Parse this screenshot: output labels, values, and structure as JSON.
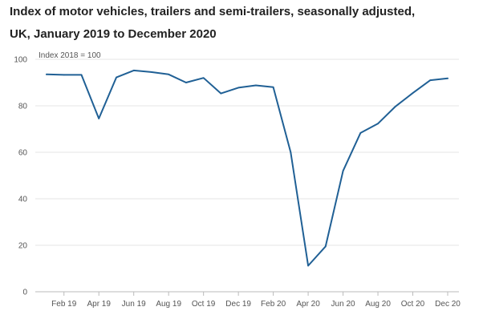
{
  "chart_data": {
    "type": "line",
    "title_lines": [
      "Index of motor vehicles, trailers and semi-trailers, seasonally adjusted,",
      "UK, January 2019 to December 2020"
    ],
    "unit_label": "Index 2018 = 100",
    "xlabel": "",
    "ylabel": "",
    "ylim": [
      0,
      100
    ],
    "y_ticks": [
      0,
      20,
      40,
      60,
      80,
      100
    ],
    "x_tick_labels": [
      {
        "label": "Feb 19",
        "index": 1
      },
      {
        "label": "Apr 19",
        "index": 3
      },
      {
        "label": "Jun 19",
        "index": 5
      },
      {
        "label": "Aug 19",
        "index": 7
      },
      {
        "label": "Oct 19",
        "index": 9
      },
      {
        "label": "Dec 19",
        "index": 11
      },
      {
        "label": "Feb 20",
        "index": 13
      },
      {
        "label": "Apr 20",
        "index": 15
      },
      {
        "label": "Jun 20",
        "index": 17
      },
      {
        "label": "Aug 20",
        "index": 19
      },
      {
        "label": "Oct 20",
        "index": 21
      },
      {
        "label": "Dec 20",
        "index": 23
      }
    ],
    "x": [
      "Jan 19",
      "Feb 19",
      "Mar 19",
      "Apr 19",
      "May 19",
      "Jun 19",
      "Jul 19",
      "Aug 19",
      "Sep 19",
      "Oct 19",
      "Nov 19",
      "Dec 19",
      "Jan 20",
      "Feb 20",
      "Mar 20",
      "Apr 20",
      "May 20",
      "Jun 20",
      "Jul 20",
      "Aug 20",
      "Sep 20",
      "Oct 20",
      "Nov 20",
      "Dec 20"
    ],
    "series": [
      {
        "color": "#206095",
        "values": [
          93.5,
          93.3,
          93.3,
          74.5,
          92.2,
          95.2,
          94.5,
          93.5,
          90.0,
          92.0,
          85.3,
          87.8,
          88.8,
          88.0,
          60.0,
          11.2,
          19.5,
          52.0,
          68.3,
          72.3,
          79.7,
          85.5,
          91.0,
          91.8
        ]
      }
    ],
    "grid": true,
    "legend": "none"
  }
}
